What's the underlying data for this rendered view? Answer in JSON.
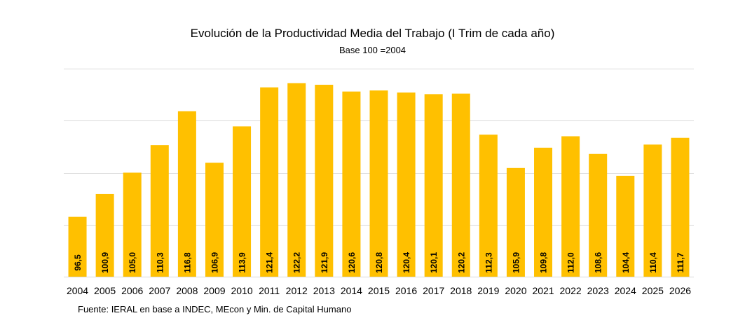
{
  "chart_data": {
    "type": "bar",
    "title": "Evolución de la Productividad Media del Trabajo (I Trim de cada año)",
    "subtitle": "Base 100 =2004",
    "categories": [
      "2004",
      "2005",
      "2006",
      "2007",
      "2008",
      "2009",
      "2010",
      "2011",
      "2012",
      "2013",
      "2014",
      "2015",
      "2016",
      "2017",
      "2018",
      "2019",
      "2020",
      "2021",
      "2022",
      "2023",
      "2024",
      "2025",
      "2026"
    ],
    "values": [
      96.5,
      100.9,
      105.0,
      110.3,
      116.8,
      106.9,
      113.9,
      121.4,
      122.2,
      121.9,
      120.6,
      120.8,
      120.4,
      120.1,
      120.2,
      112.3,
      105.9,
      109.8,
      112.0,
      108.6,
      104.4,
      110.4,
      111.7
    ],
    "value_labels": [
      "96,5",
      "100,9",
      "105,0",
      "110,3",
      "116,8",
      "106,9",
      "113,9",
      "121,4",
      "122,2",
      "121,9",
      "120,6",
      "120,8",
      "120,4",
      "120,1",
      "120,2",
      "112,3",
      "105,9",
      "109,8",
      "112,0",
      "108,6",
      "104,4",
      "110,4",
      "111,7"
    ],
    "ylim": [
      85,
      125
    ],
    "grid": true,
    "bar_color": "#FFC000",
    "grid_color": "#d9d9d9",
    "xlabel": "",
    "ylabel": ""
  },
  "footer": {
    "source": "Fuente: IERAL en base a INDEC, MEcon y Min. de Capital Humano"
  }
}
